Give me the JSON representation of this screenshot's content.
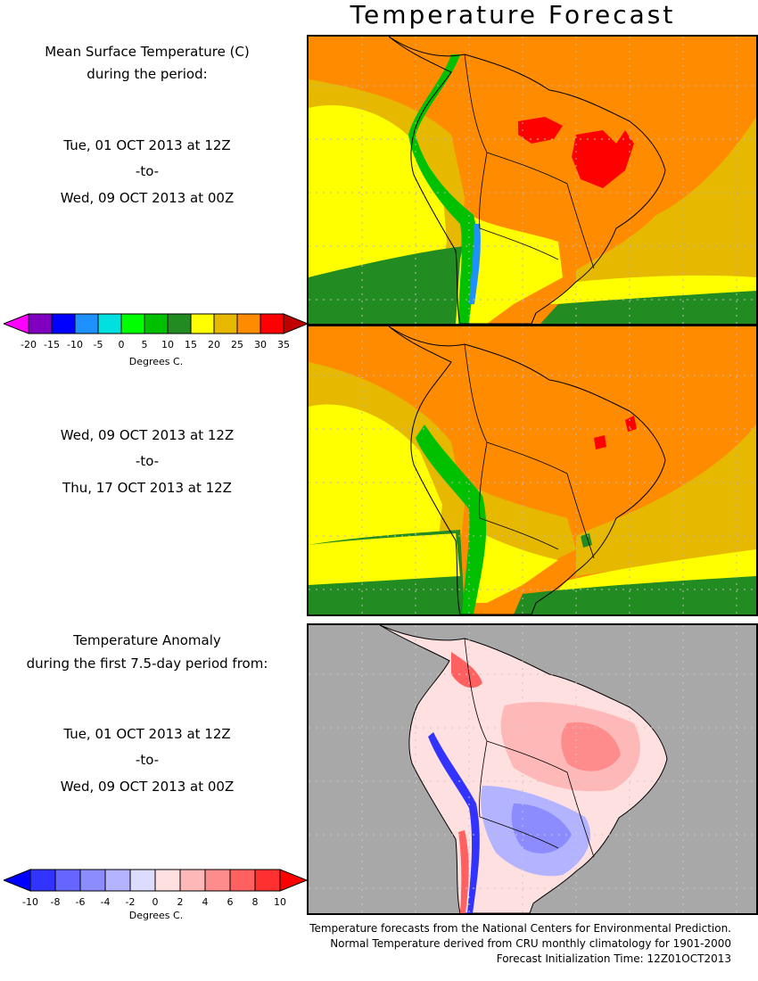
{
  "title": "Temperature Forecast",
  "panel1": {
    "heading_line1": "Mean Surface Temperature (C)",
    "heading_line2": "during the period:",
    "start": "Tue, 01 OCT 2013 at 12Z",
    "to": "-to-",
    "end": "Wed, 09 OCT 2013 at 00Z"
  },
  "panel2": {
    "start": "Wed, 09 OCT 2013 at 12Z",
    "to": "-to-",
    "end": "Thu, 17 OCT 2013 at 12Z"
  },
  "panel3": {
    "heading_line1": "Temperature Anomaly",
    "heading_line2": "during the first 7.5-day period from:",
    "start": "Tue, 01 OCT 2013 at 12Z",
    "to": "-to-",
    "end": "Wed, 09 OCT 2013 at 00Z"
  },
  "temp_colorbar": {
    "ticks": [
      "-20",
      "-15",
      "-10",
      "-5",
      "0",
      "5",
      "10",
      "15",
      "20",
      "25",
      "30",
      "35"
    ],
    "colors": [
      "#ff00ff",
      "#8000c0",
      "#0000ff",
      "#1e90ff",
      "#00e0e0",
      "#00ff00",
      "#00c000",
      "#228b22",
      "#ffff00",
      "#e6b800",
      "#ff8c00",
      "#ff0000",
      "#c00000"
    ],
    "units": "Degrees C."
  },
  "anom_colorbar": {
    "ticks": [
      "-10",
      "-8",
      "-6",
      "-4",
      "-2",
      "0",
      "2",
      "4",
      "6",
      "8",
      "10"
    ],
    "colors": [
      "#0000ff",
      "#3333ff",
      "#6666ff",
      "#8c8cff",
      "#b3b3ff",
      "#dcdcff",
      "#ffe0e0",
      "#ffb8b8",
      "#ff8c8c",
      "#ff6060",
      "#ff3030",
      "#ff0000"
    ],
    "units": "Degrees C."
  },
  "footer": {
    "line1": "Temperature forecasts from the National Centers for Environmental Prediction.",
    "line2": "Normal Temperature derived from CRU monthly climatology for 1901-2000",
    "line3": "Forecast Initialization Time: 12Z01OCT2013"
  }
}
